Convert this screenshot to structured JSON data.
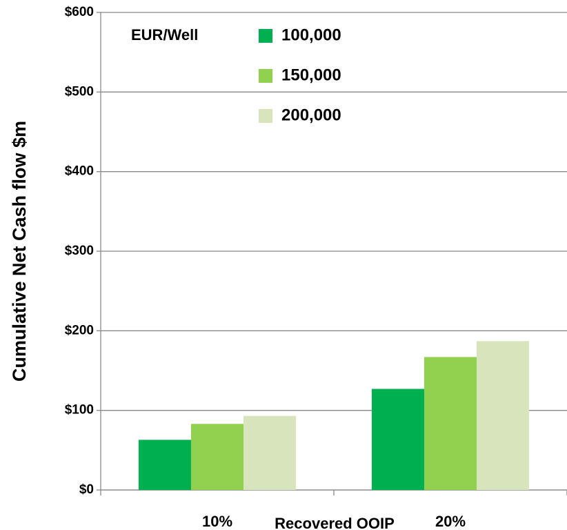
{
  "chart_data": {
    "type": "bar",
    "y_label": "Cumulative Net Cash flow $m",
    "x_label": "Recovered OOIP",
    "legend_title": "EUR/Well",
    "categories": [
      "10%",
      "20%"
    ],
    "series": [
      {
        "name": "100,000",
        "color": "#00b050",
        "values": [
          63,
          127
        ]
      },
      {
        "name": "150,000",
        "color": "#92d050",
        "values": [
          83,
          167
        ]
      },
      {
        "name": "200,000",
        "color": "#d7e4bc",
        "values": [
          93,
          187
        ]
      }
    ],
    "ylim": [
      0,
      600
    ],
    "yticks": [
      {
        "value": 0,
        "label": "$0"
      },
      {
        "value": 100,
        "label": "$100"
      },
      {
        "value": 200,
        "label": "$200"
      },
      {
        "value": 300,
        "label": "$300"
      },
      {
        "value": 400,
        "label": "$400"
      },
      {
        "value": 500,
        "label": "$500"
      },
      {
        "value": 600,
        "label": "$600"
      }
    ],
    "grid": true
  }
}
